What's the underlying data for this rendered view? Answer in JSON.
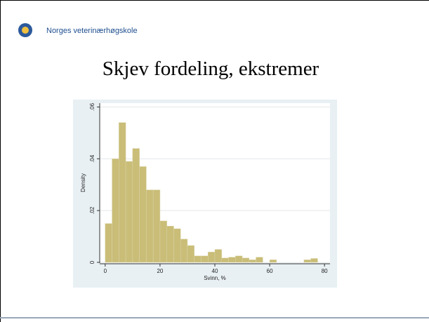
{
  "header": {
    "logo_text": "Norges veterinærhøgskole"
  },
  "chart_data": {
    "type": "histogram",
    "title": "Skjev fordeling, ekstremer",
    "x_label": "Svinn, %",
    "y_label": "Density",
    "bins": [
      0,
      2.5,
      5,
      7.5,
      10,
      12.5,
      15,
      17.5,
      20,
      22.5,
      25,
      27.5,
      30,
      32.5,
      35,
      37.5,
      40,
      42.5,
      45,
      47.5,
      50,
      52.5,
      55,
      57.5,
      60,
      62.5,
      65,
      67.5,
      70,
      72.5,
      75,
      77.5
    ],
    "values": [
      0.015,
      0.04,
      0.054,
      0.039,
      0.044,
      0.037,
      0.028,
      0.028,
      0.016,
      0.014,
      0.013,
      0.009,
      0.0065,
      0.0025,
      0.0025,
      0.004,
      0.005,
      0.0017,
      0.002,
      0.0025,
      0.0017,
      0.001,
      0.002,
      0,
      0.001,
      0,
      0,
      0,
      0,
      0.001,
      0.0015
    ],
    "color": "#c9bd78",
    "xlim": [
      -2,
      82
    ],
    "ylim": [
      0,
      0.0615
    ],
    "xticks": [
      0,
      20,
      40,
      60,
      80
    ],
    "yticks": [
      0,
      {
        "value": 0.02,
        "label": ".02"
      },
      {
        "value": 0.04,
        "label": ".04"
      },
      {
        "value": 0.06,
        "label": ".06"
      }
    ],
    "grid": true
  }
}
